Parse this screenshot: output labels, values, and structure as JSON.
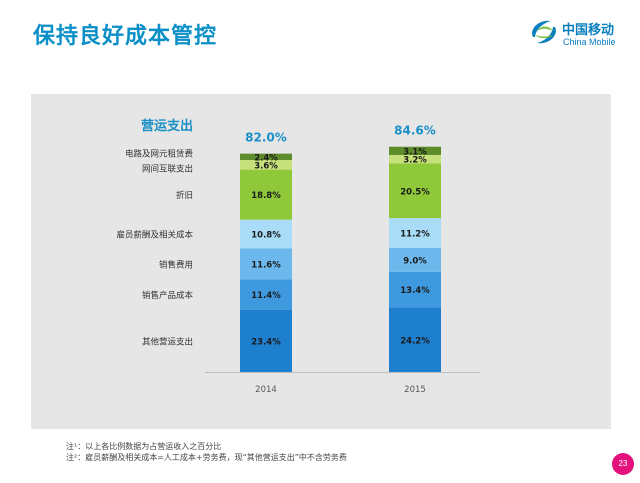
{
  "header": {
    "title": "保持良好成本管控"
  },
  "logo": {
    "name_cn": "中国移动",
    "name_en": "China Mobile"
  },
  "chart_data": {
    "type": "bar",
    "stacked": true,
    "title": "营运支出",
    "categories": [
      "2014",
      "2015"
    ],
    "totals": [
      "82.0%",
      "84.6%"
    ],
    "series": [
      {
        "name": "其他营运支出",
        "values": [
          23.4,
          24.2
        ],
        "labels": [
          "23.4%",
          "24.2%"
        ],
        "color": "#1f7fcf"
      },
      {
        "name": "销售产品成本",
        "values": [
          11.4,
          13.4
        ],
        "labels": [
          "11.4%",
          "13.4%"
        ],
        "color": "#3f99df"
      },
      {
        "name": "销售费用",
        "values": [
          11.6,
          9.0
        ],
        "labels": [
          "11.6%",
          "9.0%"
        ],
        "color": "#6cb8ec"
      },
      {
        "name": "雇员薪酬及相关成本",
        "values": [
          10.8,
          11.2
        ],
        "labels": [
          "10.8%",
          "11.2%"
        ],
        "color": "#a8dcf7"
      },
      {
        "name": "折旧",
        "values": [
          18.8,
          20.5
        ],
        "labels": [
          "18.8%",
          "20.5%"
        ],
        "color": "#8fc93a"
      },
      {
        "name": "网间互联支出",
        "values": [
          3.6,
          3.2
        ],
        "labels": [
          "3.6%",
          "3.2%"
        ],
        "color": "#c6e07a"
      },
      {
        "name": "电路及网元租赁费",
        "values": [
          2.4,
          3.1
        ],
        "labels": [
          "2.4%",
          "3.1%"
        ],
        "color": "#5e8c2a"
      }
    ]
  },
  "notes": [
    "注¹：以上各比例数据为占营运收入之百分比",
    "注²：雇员薪酬及相关成本=人工成本+劳务费，现“其他营运支出”中不含劳务费"
  ],
  "page_number": "23"
}
